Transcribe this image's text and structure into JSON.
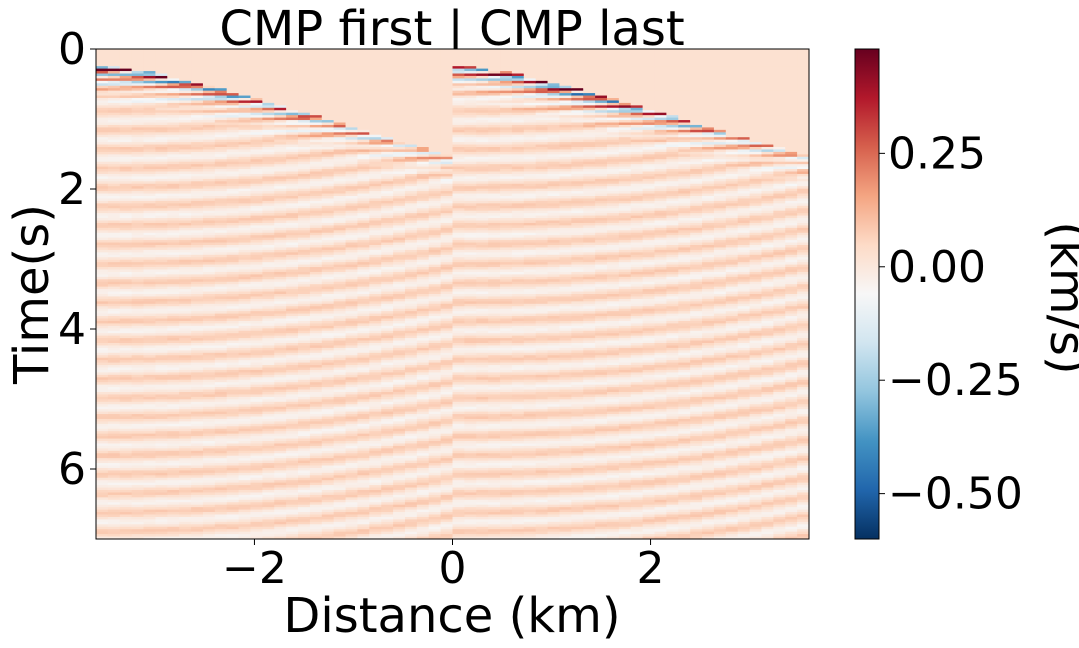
{
  "chart_data": {
    "type": "heatmap",
    "title": "CMP first | CMP last",
    "xlabel": "Distance (km)",
    "ylabel": "Time(s)",
    "xlim": [
      -3.6,
      3.6
    ],
    "ylim": [
      7.0,
      0.0
    ],
    "x_ticks": [
      -2,
      0,
      2
    ],
    "x_tick_labels": [
      "−2",
      "0",
      "2"
    ],
    "y_ticks": [
      0,
      2,
      4,
      6
    ],
    "y_tick_labels": [
      "0",
      "2",
      "4",
      "6"
    ],
    "colorbar": {
      "label": "(km/s)",
      "colormap": "RdBu_r",
      "vmin": -0.6,
      "vmax": 0.48,
      "ticks": [
        -0.5,
        -0.25,
        0.0,
        0.25
      ],
      "tick_labels": [
        "−0.50",
        "−0.25",
        "0.00",
        "0.25"
      ],
      "colors": [
        "#053061",
        "#2166ac",
        "#4393c3",
        "#92c5de",
        "#d1e5f0",
        "#f7f7f7",
        "#fddbc7",
        "#f4a582",
        "#d6604d",
        "#b2182b",
        "#67001f"
      ]
    },
    "panels": [
      {
        "name": "CMP first",
        "x_range": [
          -3.6,
          0.0
        ],
        "apex_time_s": 0.3,
        "moveout_velocity_km_s": 2.3
      },
      {
        "name": "CMP last",
        "x_range": [
          0.0,
          3.6
        ],
        "apex_time_s": 0.3,
        "moveout_velocity_km_s": 2.3
      }
    ],
    "grid": false
  }
}
